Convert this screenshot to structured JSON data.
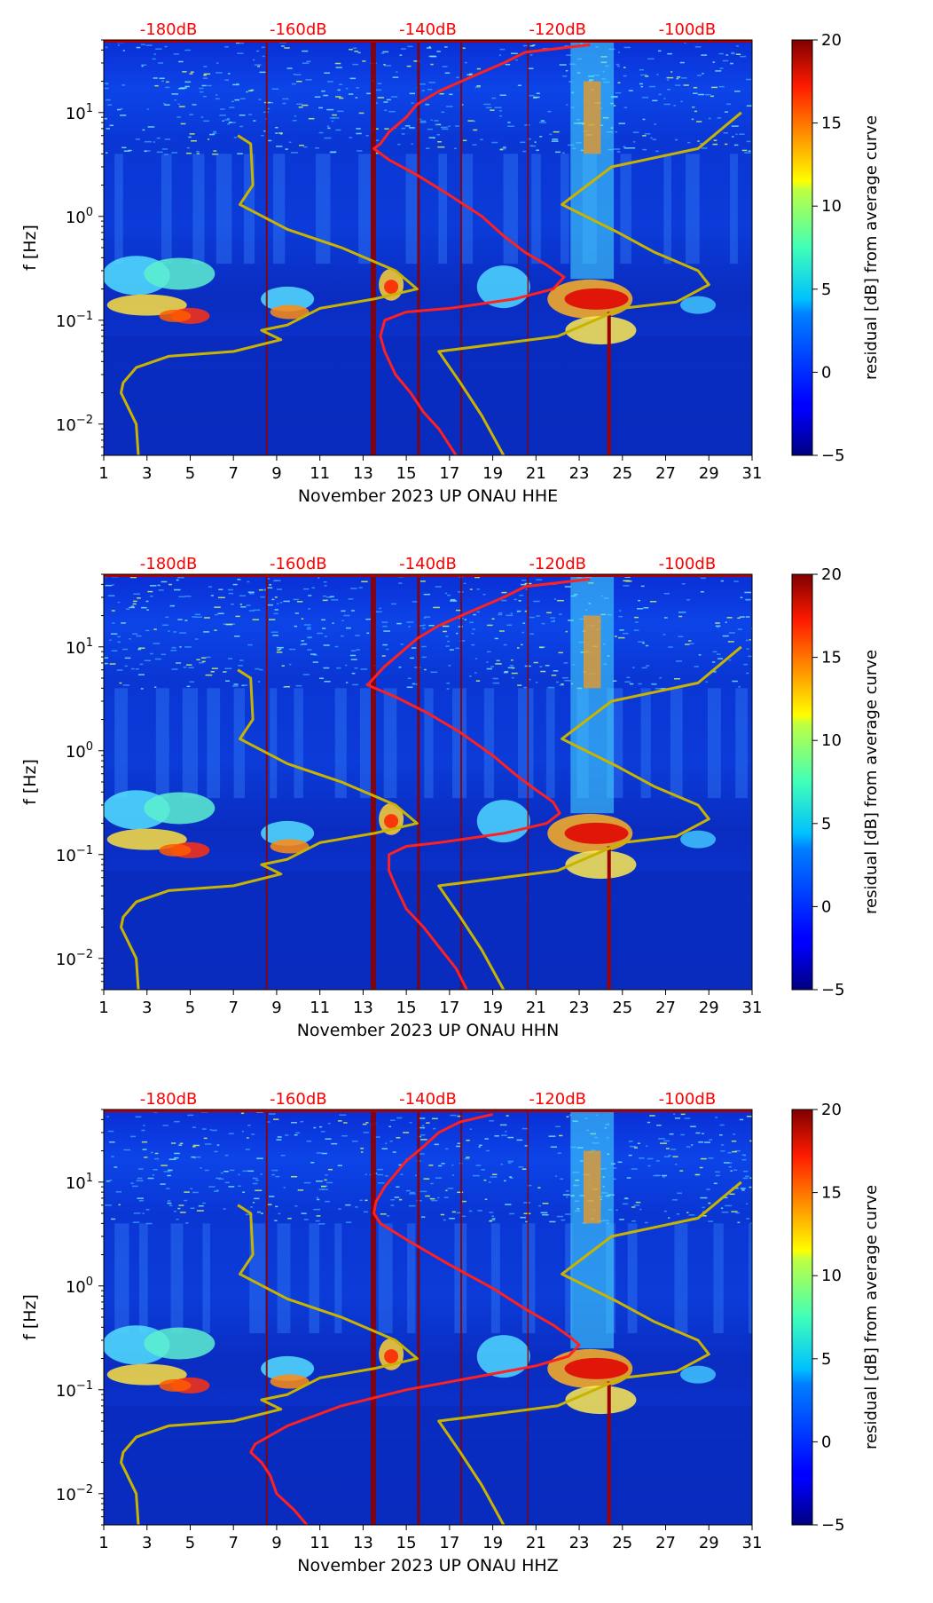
{
  "chart_data": [
    {
      "type": "heatmap",
      "title": "",
      "xlabel": "November 2023 UP ONAU  HHE",
      "ylabel": "f [Hz]",
      "x_ticks": [
        "1",
        "3",
        "5",
        "7",
        "9",
        "11",
        "13",
        "15",
        "17",
        "19",
        "21",
        "23",
        "25",
        "27",
        "29",
        "31"
      ],
      "xlim": [
        1,
        31
      ],
      "y_ticks": [
        {
          "value": 0.01,
          "base": "10",
          "exp": "−2"
        },
        {
          "value": 0.1,
          "base": "10",
          "exp": "−1"
        },
        {
          "value": 1,
          "base": "10",
          "exp": "0"
        },
        {
          "value": 10,
          "base": "10",
          "exp": "1"
        }
      ],
      "ylim": [
        0.005,
        50
      ],
      "db_ticks": [
        {
          "label": "-180dB",
          "day": 4
        },
        {
          "label": "-160dB",
          "day": 10
        },
        {
          "label": "-140dB",
          "day": 16
        },
        {
          "label": "-120dB",
          "day": 22
        },
        {
          "label": "-100dB",
          "day": 28
        }
      ],
      "colorbar": {
        "label": "residual [dB] from average curve",
        "min": -5,
        "max": 20,
        "ticks": [
          "−5",
          "0",
          "5",
          "10",
          "15",
          "20"
        ]
      },
      "series": [
        {
          "name": "average PSD curve",
          "color": "#ff2020",
          "points": [
            [
              23.5,
              45
            ],
            [
              20.5,
              38
            ],
            [
              19.5,
              30
            ],
            [
              18,
              22
            ],
            [
              16.5,
              16
            ],
            [
              15.5,
              12
            ],
            [
              15,
              9
            ],
            [
              14.2,
              6.5
            ],
            [
              13.8,
              5
            ],
            [
              13.5,
              4.5
            ],
            [
              14.2,
              3.5
            ],
            [
              15.5,
              2.5
            ],
            [
              17,
              1.6
            ],
            [
              18.5,
              1.0
            ],
            [
              19.5,
              0.65
            ],
            [
              20.5,
              0.45
            ],
            [
              21.5,
              0.34
            ],
            [
              22.3,
              0.26
            ],
            [
              21.8,
              0.2
            ],
            [
              20,
              0.16
            ],
            [
              17,
              0.13
            ],
            [
              15,
              0.12
            ],
            [
              14,
              0.1
            ],
            [
              13.8,
              0.07
            ],
            [
              14,
              0.05
            ],
            [
              14.5,
              0.03
            ],
            [
              15.2,
              0.02
            ],
            [
              15.8,
              0.013
            ],
            [
              16.5,
              0.009
            ],
            [
              17.3,
              0.005
            ]
          ]
        },
        {
          "name": "noise model curve",
          "color": "#c8b400",
          "points": [
            [
              30.5,
              10
            ],
            [
              28.5,
              4.5
            ],
            [
              24.5,
              3
            ],
            [
              22.2,
              1.3
            ],
            [
              24.8,
              0.7
            ],
            [
              26.5,
              0.45
            ],
            [
              28.5,
              0.3
            ],
            [
              29,
              0.22
            ],
            [
              27.5,
              0.15
            ],
            [
              25,
              0.13
            ],
            [
              22,
              0.07
            ],
            [
              16.5,
              0.05
            ],
            [
              17.5,
              0.025
            ],
            [
              18.5,
              0.012
            ],
            [
              19.5,
              0.005
            ]
          ]
        },
        {
          "name": "noise model curve left",
          "color": "#c8b400",
          "points": [
            [
              7.2,
              6
            ],
            [
              7.8,
              5
            ],
            [
              7.9,
              2
            ],
            [
              7.3,
              1.3
            ],
            [
              9.5,
              0.75
            ],
            [
              12,
              0.5
            ],
            [
              14.5,
              0.3
            ],
            [
              15.5,
              0.2
            ],
            [
              13.5,
              0.16
            ],
            [
              11,
              0.13
            ],
            [
              9.5,
              0.09
            ],
            [
              8.3,
              0.08
            ],
            [
              9.2,
              0.065
            ],
            [
              7,
              0.05
            ],
            [
              4,
              0.045
            ],
            [
              2.5,
              0.035
            ],
            [
              1.9,
              0.025
            ],
            [
              1.8,
              0.02
            ],
            [
              2.5,
              0.01
            ],
            [
              2.6,
              0.005
            ]
          ]
        }
      ]
    },
    {
      "type": "heatmap",
      "title": "",
      "xlabel": "November 2023 UP ONAU  HHN",
      "ylabel": "f [Hz]",
      "x_ticks": [
        "1",
        "3",
        "5",
        "7",
        "9",
        "11",
        "13",
        "15",
        "17",
        "19",
        "21",
        "23",
        "25",
        "27",
        "29",
        "31"
      ],
      "xlim": [
        1,
        31
      ],
      "y_ticks": [
        {
          "value": 0.01,
          "base": "10",
          "exp": "−2"
        },
        {
          "value": 0.1,
          "base": "10",
          "exp": "−1"
        },
        {
          "value": 1,
          "base": "10",
          "exp": "0"
        },
        {
          "value": 10,
          "base": "10",
          "exp": "1"
        }
      ],
      "ylim": [
        0.005,
        50
      ],
      "db_ticks": [
        {
          "label": "-180dB",
          "day": 4
        },
        {
          "label": "-160dB",
          "day": 10
        },
        {
          "label": "-140dB",
          "day": 16
        },
        {
          "label": "-120dB",
          "day": 22
        },
        {
          "label": "-100dB",
          "day": 28
        }
      ],
      "colorbar": {
        "label": "residual [dB] from average curve",
        "min": -5,
        "max": 20,
        "ticks": [
          "−5",
          "0",
          "5",
          "10",
          "15",
          "20"
        ]
      },
      "series": [
        {
          "name": "average PSD curve",
          "color": "#ff2020",
          "points": [
            [
              23.5,
              45
            ],
            [
              20.5,
              38
            ],
            [
              19.5,
              30
            ],
            [
              18,
              22
            ],
            [
              16.5,
              16
            ],
            [
              15.5,
              12
            ],
            [
              14.8,
              9
            ],
            [
              14,
              6.5
            ],
            [
              13.5,
              5
            ],
            [
              13.2,
              4.3
            ],
            [
              14.5,
              3.3
            ],
            [
              16,
              2.3
            ],
            [
              17.5,
              1.5
            ],
            [
              19,
              0.9
            ],
            [
              20,
              0.6
            ],
            [
              21,
              0.42
            ],
            [
              21.8,
              0.32
            ],
            [
              22.1,
              0.25
            ],
            [
              21.5,
              0.2
            ],
            [
              19.5,
              0.16
            ],
            [
              16.5,
              0.13
            ],
            [
              15,
              0.12
            ],
            [
              14.2,
              0.1
            ],
            [
              14.2,
              0.07
            ],
            [
              14.5,
              0.05
            ],
            [
              15,
              0.03
            ],
            [
              15.8,
              0.02
            ],
            [
              16.5,
              0.013
            ],
            [
              17.3,
              0.008
            ],
            [
              17.8,
              0.005
            ]
          ]
        },
        {
          "name": "noise model curve",
          "color": "#c8b400",
          "points": [
            [
              30.5,
              10
            ],
            [
              28.5,
              4.5
            ],
            [
              24.5,
              3
            ],
            [
              22.2,
              1.3
            ],
            [
              24.8,
              0.7
            ],
            [
              26.5,
              0.45
            ],
            [
              28.5,
              0.3
            ],
            [
              29,
              0.22
            ],
            [
              27.5,
              0.15
            ],
            [
              25,
              0.13
            ],
            [
              22,
              0.07
            ],
            [
              16.5,
              0.05
            ],
            [
              17.5,
              0.025
            ],
            [
              18.5,
              0.012
            ],
            [
              19.5,
              0.005
            ]
          ]
        },
        {
          "name": "noise model curve left",
          "color": "#c8b400",
          "points": [
            [
              7.2,
              6
            ],
            [
              7.8,
              5
            ],
            [
              7.9,
              2
            ],
            [
              7.3,
              1.3
            ],
            [
              9.5,
              0.75
            ],
            [
              12,
              0.5
            ],
            [
              14.5,
              0.3
            ],
            [
              15.5,
              0.2
            ],
            [
              13.5,
              0.16
            ],
            [
              11,
              0.13
            ],
            [
              9.5,
              0.09
            ],
            [
              8.3,
              0.08
            ],
            [
              9.2,
              0.065
            ],
            [
              7,
              0.05
            ],
            [
              4,
              0.045
            ],
            [
              2.5,
              0.035
            ],
            [
              1.9,
              0.025
            ],
            [
              1.8,
              0.02
            ],
            [
              2.5,
              0.01
            ],
            [
              2.6,
              0.005
            ]
          ]
        }
      ]
    },
    {
      "type": "heatmap",
      "title": "",
      "xlabel": "November 2023 UP ONAU  HHZ",
      "ylabel": "f [Hz]",
      "x_ticks": [
        "1",
        "3",
        "5",
        "7",
        "9",
        "11",
        "13",
        "15",
        "17",
        "19",
        "21",
        "23",
        "25",
        "27",
        "29",
        "31"
      ],
      "xlim": [
        1,
        31
      ],
      "y_ticks": [
        {
          "value": 0.01,
          "base": "10",
          "exp": "−2"
        },
        {
          "value": 0.1,
          "base": "10",
          "exp": "−1"
        },
        {
          "value": 1,
          "base": "10",
          "exp": "0"
        },
        {
          "value": 10,
          "base": "10",
          "exp": "1"
        }
      ],
      "ylim": [
        0.005,
        50
      ],
      "db_ticks": [
        {
          "label": "-180dB",
          "day": 4
        },
        {
          "label": "-160dB",
          "day": 10
        },
        {
          "label": "-140dB",
          "day": 16
        },
        {
          "label": "-120dB",
          "day": 22
        },
        {
          "label": "-100dB",
          "day": 28
        }
      ],
      "colorbar": {
        "label": "residual [dB] from average curve",
        "min": -5,
        "max": 20,
        "ticks": [
          "−5",
          "0",
          "5",
          "10",
          "15",
          "20"
        ]
      },
      "series": [
        {
          "name": "average PSD curve",
          "color": "#ff2020",
          "points": [
            [
              19,
              45
            ],
            [
              17.5,
              38
            ],
            [
              16.5,
              30
            ],
            [
              15.8,
              22
            ],
            [
              15,
              16
            ],
            [
              14.5,
              12
            ],
            [
              14,
              9
            ],
            [
              13.6,
              6.5
            ],
            [
              13.5,
              5
            ],
            [
              13.8,
              4
            ],
            [
              15,
              2.8
            ],
            [
              17,
              1.6
            ],
            [
              19,
              0.95
            ],
            [
              20.5,
              0.6
            ],
            [
              21.8,
              0.42
            ],
            [
              22.6,
              0.32
            ],
            [
              23,
              0.27
            ],
            [
              22.5,
              0.21
            ],
            [
              21,
              0.17
            ],
            [
              18,
              0.13
            ],
            [
              15,
              0.1
            ],
            [
              12,
              0.07
            ],
            [
              9.5,
              0.045
            ],
            [
              8,
              0.03
            ],
            [
              7.8,
              0.025
            ],
            [
              8.3,
              0.02
            ],
            [
              8.7,
              0.015
            ],
            [
              9,
              0.01
            ],
            [
              9.8,
              0.007
            ],
            [
              10.4,
              0.005
            ]
          ]
        },
        {
          "name": "noise model curve",
          "color": "#c8b400",
          "points": [
            [
              30.5,
              10
            ],
            [
              28.5,
              4.5
            ],
            [
              24.5,
              3
            ],
            [
              22.2,
              1.3
            ],
            [
              24.8,
              0.7
            ],
            [
              26.5,
              0.45
            ],
            [
              28.5,
              0.3
            ],
            [
              29,
              0.22
            ],
            [
              27.5,
              0.15
            ],
            [
              25,
              0.13
            ],
            [
              22,
              0.07
            ],
            [
              16.5,
              0.05
            ],
            [
              17.5,
              0.025
            ],
            [
              18.5,
              0.012
            ],
            [
              19.5,
              0.005
            ]
          ]
        },
        {
          "name": "noise model curve left",
          "color": "#c8b400",
          "points": [
            [
              7.2,
              6
            ],
            [
              7.8,
              5
            ],
            [
              7.9,
              2
            ],
            [
              7.3,
              1.3
            ],
            [
              9.5,
              0.75
            ],
            [
              12,
              0.5
            ],
            [
              14.5,
              0.3
            ],
            [
              15.5,
              0.2
            ],
            [
              13.5,
              0.16
            ],
            [
              11,
              0.13
            ],
            [
              9.5,
              0.09
            ],
            [
              8.3,
              0.08
            ],
            [
              9.2,
              0.065
            ],
            [
              7,
              0.05
            ],
            [
              4,
              0.045
            ],
            [
              2.5,
              0.035
            ],
            [
              1.9,
              0.025
            ],
            [
              1.8,
              0.02
            ],
            [
              2.5,
              0.01
            ],
            [
              2.6,
              0.005
            ]
          ]
        }
      ]
    }
  ]
}
